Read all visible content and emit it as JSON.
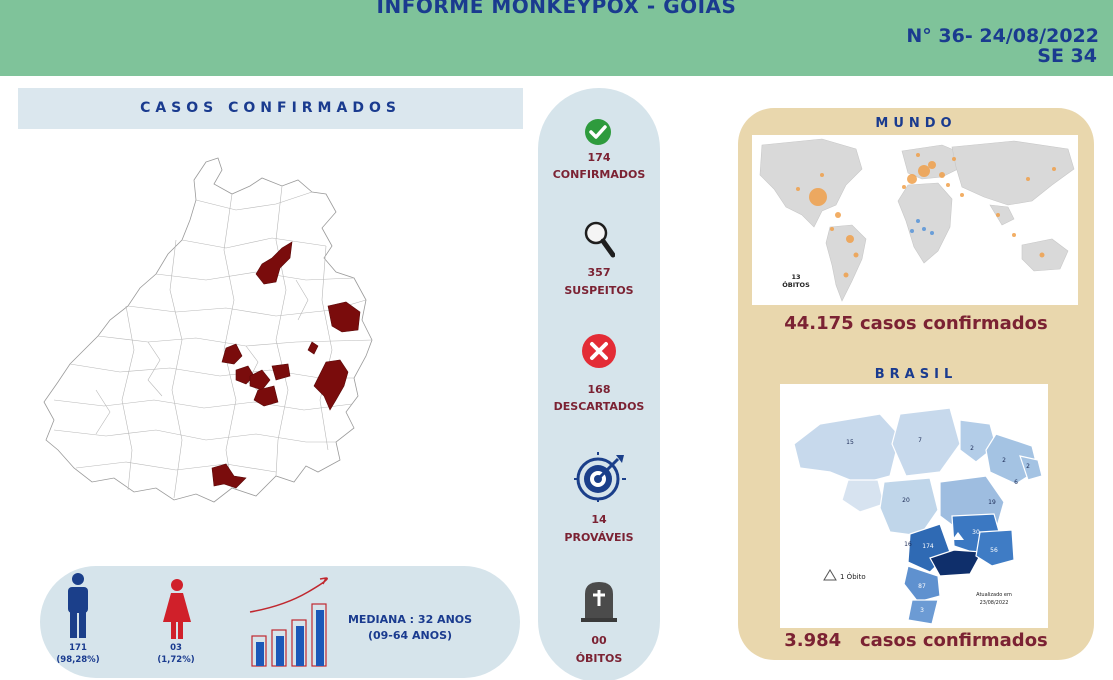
{
  "header": {
    "title": "INFORME MONKEYPOX - GOIÁS",
    "issue_line": "N° 36- 24/08/2022",
    "epi_week": "SE 34"
  },
  "goias": {
    "banner": "CASOS CONFIRMADOS"
  },
  "demographics": {
    "male": {
      "count": "171",
      "percent": "(98,28%)"
    },
    "female": {
      "count": "03",
      "percent": "(1,72%)"
    },
    "median_label": "MEDIANA : 32 ANOS",
    "range_label": "(09-64 ANOS)"
  },
  "stats": [
    {
      "icon": "check-circle-icon",
      "value": "174",
      "label": "CONFIRMADOS"
    },
    {
      "icon": "magnifier-icon",
      "value": "357",
      "label": "SUSPEITOS"
    },
    {
      "icon": "x-circle-icon",
      "value": "168",
      "label": "DESCARTADOS"
    },
    {
      "icon": "target-icon",
      "value": "14",
      "label": "PROVÁVEIS"
    },
    {
      "icon": "tombstone-icon",
      "value": "00",
      "label": "ÓBITOS"
    }
  ],
  "world": {
    "title": "MUNDO",
    "deaths_count": "13",
    "deaths_label": "ÓBITOS",
    "cases_label": "44.175 casos confirmados"
  },
  "brazil": {
    "title": "BRASIL",
    "legend_label": "1 Óbito",
    "updated_label": "Atualizado em",
    "updated_date": "23/08/2022",
    "cases_label": "3.984   casos confirmados",
    "state_counts": [
      "15",
      "7",
      "2",
      "2",
      "2",
      "6",
      "19",
      "20",
      "16",
      "174",
      "30",
      "56",
      "87",
      "3"
    ]
  },
  "colors": {
    "header_bg": "#7fc39a",
    "title_blue": "#1a3b8f",
    "wine": "#7b2233",
    "panel_blue": "#d6e4eb",
    "panel_sand": "#e9d7ad",
    "highlight_muni": "#7a0c0c"
  }
}
